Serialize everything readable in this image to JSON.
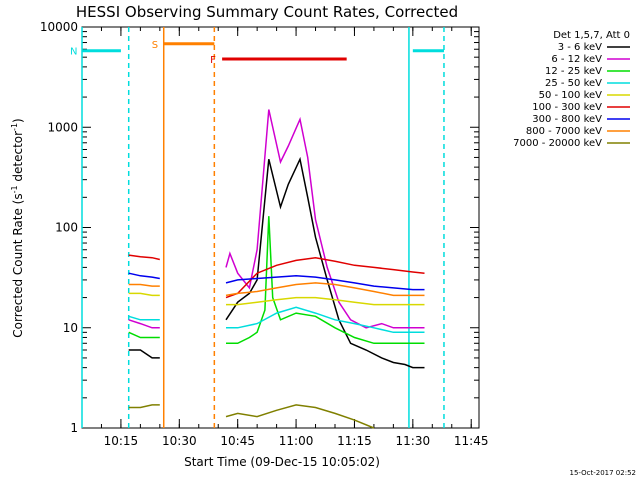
{
  "chart_data": {
    "type": "line",
    "title": "HESSI Observing Summary Count Rates, Corrected",
    "xlabel": "Start Time (09-Dec-15 10:05:02)",
    "ylabel_main": "Corrected Count Rate (s",
    "ylabel_sup1": "-1",
    "ylabel_mid": " detector",
    "ylabel_sup2": "-1",
    "ylabel_end": ")",
    "xlim": [
      "10:05",
      "11:47"
    ],
    "ylim": [
      1,
      10000
    ],
    "yscale": "log",
    "x_ticks": [
      "10:15",
      "10:30",
      "10:45",
      "11:00",
      "11:15",
      "11:30",
      "11:45"
    ],
    "y_ticks": [
      "1",
      "10",
      "100",
      "1000",
      "10000"
    ],
    "legend_header": "Det 1,5,7, Att 0",
    "legend_position": "right",
    "stamp": "15-Oct-2017 02:52",
    "series": [
      {
        "name": "3 - 6 keV",
        "color": "#000000",
        "segments": [
          {
            "x": [
              "10:17",
              "10:20",
              "10:23",
              "10:25"
            ],
            "y": [
              6,
              6,
              5,
              5
            ]
          },
          {
            "x": [
              "10:42",
              "10:45",
              "10:48",
              "10:50",
              "10:53",
              "10:56",
              "10:58",
              "11:01",
              "11:03",
              "11:05",
              "11:08",
              "11:11",
              "11:14",
              "11:18",
              "11:22",
              "11:25",
              "11:28",
              "11:30",
              "11:33"
            ],
            "y": [
              12,
              18,
              22,
              30,
              480,
              160,
              270,
              480,
              200,
              80,
              30,
              12,
              7,
              6,
              5,
              4.5,
              4.3,
              4,
              4
            ]
          }
        ]
      },
      {
        "name": "6 - 12 keV",
        "color": "#d000d0",
        "segments": [
          {
            "x": [
              "10:17",
              "10:20",
              "10:23",
              "10:25"
            ],
            "y": [
              12,
              11,
              10,
              10
            ]
          },
          {
            "x": [
              "10:42",
              "10:43",
              "10:45",
              "10:48",
              "10:50",
              "10:53",
              "10:56",
              "10:58",
              "11:01",
              "11:03",
              "11:05",
              "11:08",
              "11:11",
              "11:14",
              "11:18",
              "11:22",
              "11:25",
              "11:28",
              "11:30",
              "11:33"
            ],
            "y": [
              40,
              55,
              35,
              25,
              60,
              1500,
              450,
              650,
              1200,
              500,
              120,
              40,
              18,
              12,
              10,
              11,
              10,
              10,
              10,
              10
            ]
          }
        ]
      },
      {
        "name": "12 - 25 keV",
        "color": "#00dd00",
        "segments": [
          {
            "x": [
              "10:17",
              "10:20",
              "10:23",
              "10:25"
            ],
            "y": [
              9,
              8,
              8,
              8
            ]
          },
          {
            "x": [
              "10:42",
              "10:45",
              "10:48",
              "10:50",
              "10:52",
              "10:53",
              "10:54",
              "10:56",
              "11:00",
              "11:05",
              "11:10",
              "11:15",
              "11:20",
              "11:25",
              "11:30",
              "11:33"
            ],
            "y": [
              7,
              7,
              8,
              9,
              15,
              130,
              20,
              12,
              14,
              13,
              10,
              8,
              7,
              7,
              7,
              7
            ]
          }
        ]
      },
      {
        "name": "25 - 50 keV",
        "color": "#00dddd",
        "segments": [
          {
            "x": [
              "10:17",
              "10:20",
              "10:23",
              "10:25"
            ],
            "y": [
              13,
              12,
              12,
              12
            ]
          },
          {
            "x": [
              "10:42",
              "10:45",
              "10:50",
              "10:55",
              "11:00",
              "11:05",
              "11:10",
              "11:15",
              "11:20",
              "11:25",
              "11:30",
              "11:33"
            ],
            "y": [
              10,
              10,
              11,
              14,
              16,
              14,
              12,
              11,
              10,
              9,
              9,
              9
            ]
          }
        ]
      },
      {
        "name": "50 - 100 keV",
        "color": "#d8d800",
        "segments": [
          {
            "x": [
              "10:17",
              "10:20",
              "10:23",
              "10:25"
            ],
            "y": [
              22,
              22,
              21,
              21
            ]
          },
          {
            "x": [
              "10:42",
              "10:45",
              "10:50",
              "10:55",
              "11:00",
              "11:05",
              "11:10",
              "11:15",
              "11:20",
              "11:25",
              "11:30",
              "11:33"
            ],
            "y": [
              17,
              17,
              18,
              19,
              20,
              20,
              19,
              18,
              17,
              17,
              17,
              17
            ]
          }
        ]
      },
      {
        "name": "100 - 300 keV",
        "color": "#e00000",
        "segments": [
          {
            "x": [
              "10:17",
              "10:20",
              "10:23",
              "10:25"
            ],
            "y": [
              53,
              51,
              50,
              48
            ]
          },
          {
            "x": [
              "10:42",
              "10:45",
              "10:50",
              "10:55",
              "11:00",
              "11:05",
              "11:10",
              "11:15",
              "11:20",
              "11:25",
              "11:30",
              "11:33"
            ],
            "y": [
              20,
              22,
              35,
              42,
              47,
              50,
              46,
              42,
              40,
              38,
              36,
              35
            ]
          }
        ]
      },
      {
        "name": "300 - 800 keV",
        "color": "#0000ee",
        "segments": [
          {
            "x": [
              "10:17",
              "10:20",
              "10:23",
              "10:25"
            ],
            "y": [
              35,
              33,
              32,
              31
            ]
          },
          {
            "x": [
              "10:42",
              "10:45",
              "10:50",
              "10:55",
              "11:00",
              "11:05",
              "11:10",
              "11:15",
              "11:20",
              "11:25",
              "11:30",
              "11:33"
            ],
            "y": [
              28,
              30,
              31,
              32,
              33,
              32,
              30,
              28,
              26,
              25,
              24,
              24
            ]
          }
        ]
      },
      {
        "name": "800 - 7000 keV",
        "color": "#ff8000",
        "segments": [
          {
            "x": [
              "10:17",
              "10:20",
              "10:23",
              "10:25"
            ],
            "y": [
              27,
              27,
              26,
              26
            ]
          },
          {
            "x": [
              "10:42",
              "10:45",
              "10:50",
              "10:55",
              "11:00",
              "11:05",
              "11:10",
              "11:15",
              "11:20",
              "11:25",
              "11:30",
              "11:33"
            ],
            "y": [
              21,
              22,
              23,
              25,
              27,
              28,
              27,
              25,
              23,
              21,
              21,
              21
            ]
          }
        ]
      },
      {
        "name": "7000 - 20000 keV",
        "color": "#808000",
        "segments": [
          {
            "x": [
              "10:17",
              "10:20",
              "10:23",
              "10:25"
            ],
            "y": [
              1.6,
              1.6,
              1.7,
              1.7
            ]
          },
          {
            "x": [
              "10:42",
              "10:45",
              "10:50",
              "10:55",
              "11:00",
              "11:05",
              "11:10",
              "11:15",
              "11:20"
            ],
            "y": [
              1.3,
              1.4,
              1.3,
              1.5,
              1.7,
              1.6,
              1.4,
              1.2,
              1
            ]
          }
        ]
      }
    ],
    "flag_bars": [
      {
        "label": "N",
        "color": "#00dddd",
        "x": [
          "10:05",
          "10:15"
        ],
        "y": 5800
      },
      {
        "label": "S",
        "color": "#ff8000",
        "x": [
          "10:26",
          "10:39"
        ],
        "y": 6800
      },
      {
        "label": "F",
        "color": "#e00000",
        "x": [
          "10:41",
          "11:13"
        ],
        "y": 4800
      },
      {
        "label": "",
        "color": "#00dddd",
        "x": [
          "11:30",
          "11:38"
        ],
        "y": 5800
      }
    ],
    "vertical_lines": [
      {
        "x": "10:05",
        "color": "#00dddd",
        "style": "solid"
      },
      {
        "x": "10:17",
        "color": "#00dddd",
        "style": "dashed"
      },
      {
        "x": "10:26",
        "color": "#ff8000",
        "style": "solid"
      },
      {
        "x": "10:39",
        "color": "#ff8000",
        "style": "dashed"
      },
      {
        "x": "11:29",
        "color": "#00dddd",
        "style": "solid"
      },
      {
        "x": "11:38",
        "color": "#00dddd",
        "style": "dashed"
      }
    ]
  }
}
